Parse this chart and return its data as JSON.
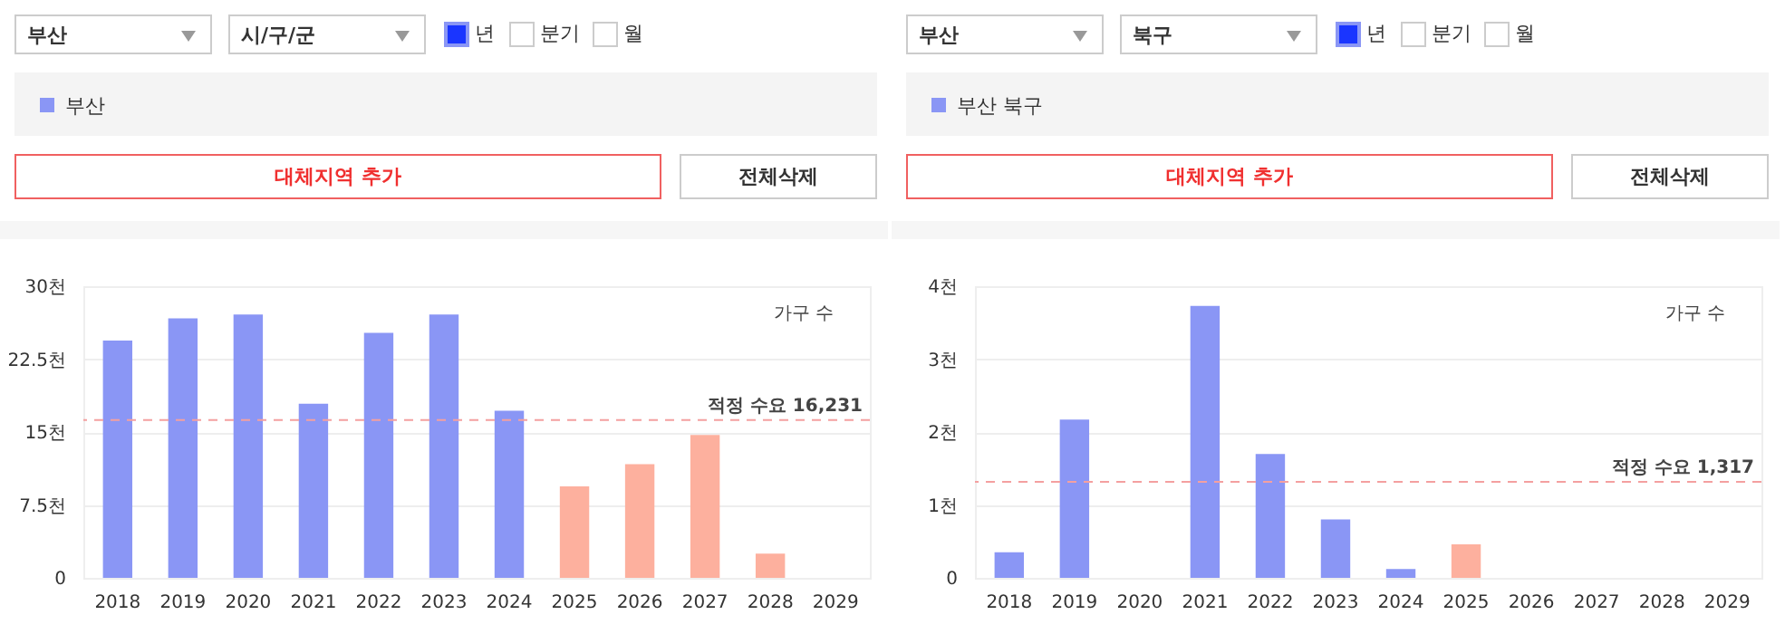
{
  "chart_data": [
    {
      "type": "bar",
      "ylabel": "가구 수",
      "categories": [
        "2018",
        "2019",
        "2020",
        "2021",
        "2022",
        "2023",
        "2024",
        "2025",
        "2026",
        "2027",
        "2028",
        "2029"
      ],
      "series": [
        {
          "name": "부산",
          "color": "#8a96f5",
          "values": [
            24.4,
            26.7,
            27.1,
            17.9,
            25.2,
            27.1,
            17.2,
            9.4,
            11.7,
            14.7,
            2.5,
            0
          ],
          "colors": [
            "#8a96f5",
            "#8a96f5",
            "#8a96f5",
            "#8a96f5",
            "#8a96f5",
            "#8a96f5",
            "#8a96f5",
            "#fdb09e",
            "#fdb09e",
            "#fdb09e",
            "#fdb09e",
            "#fdb09e"
          ]
        }
      ],
      "ylim": [
        0,
        30
      ],
      "yticks": [
        0,
        {
          "value": 7.5,
          "label": "7.5천"
        },
        {
          "value": 15,
          "label": "15천"
        },
        {
          "value": 22.5,
          "label": "22.5천"
        },
        {
          "value": 30,
          "label": "30천"
        }
      ],
      "grid": "y",
      "legend": "top left",
      "ref_lines": [
        {
          "axis": "y",
          "value": 16.231,
          "label": "적정 수요 16,231",
          "color": "#f4a0a0",
          "line_style": "dashed"
        }
      ],
      "annotations": [
        "부산",
        "시/구/군",
        "년",
        "분기",
        "월",
        "대체지역 추가",
        "전체삭제"
      ]
    },
    {
      "type": "bar",
      "ylabel": "가구 수",
      "categories": [
        "2018",
        "2019",
        "2020",
        "2021",
        "2022",
        "2023",
        "2024",
        "2025",
        "2026",
        "2027",
        "2028",
        "2029"
      ],
      "series": [
        {
          "name": "부산 북구",
          "color": "#8a96f5",
          "values": [
            0.35,
            2.17,
            0,
            3.73,
            1.7,
            0.8,
            0.12,
            0.46,
            0,
            0,
            0,
            0
          ],
          "colors": [
            "#8a96f5",
            "#8a96f5",
            "#8a96f5",
            "#8a96f5",
            "#8a96f5",
            "#8a96f5",
            "#8a96f5",
            "#fdb09e",
            "#fdb09e",
            "#fdb09e",
            "#fdb09e",
            "#fdb09e"
          ]
        }
      ],
      "ylim": [
        0,
        4
      ],
      "yticks": [
        0,
        {
          "value": 1,
          "label": "1천"
        },
        {
          "value": 2,
          "label": "2천"
        },
        {
          "value": 3,
          "label": "3천"
        },
        {
          "value": 4,
          "label": "4천"
        }
      ],
      "grid": "y",
      "legend": "top left",
      "ref_lines": [
        {
          "axis": "y",
          "value": 1.317,
          "label": "적정 수요 1,317",
          "color": "#f4a0a0",
          "line_style": "dashed"
        }
      ],
      "annotations": [
        "부산",
        "북구",
        "년",
        "분기",
        "월",
        "대체지역 추가",
        "전체삭제"
      ]
    }
  ]
}
